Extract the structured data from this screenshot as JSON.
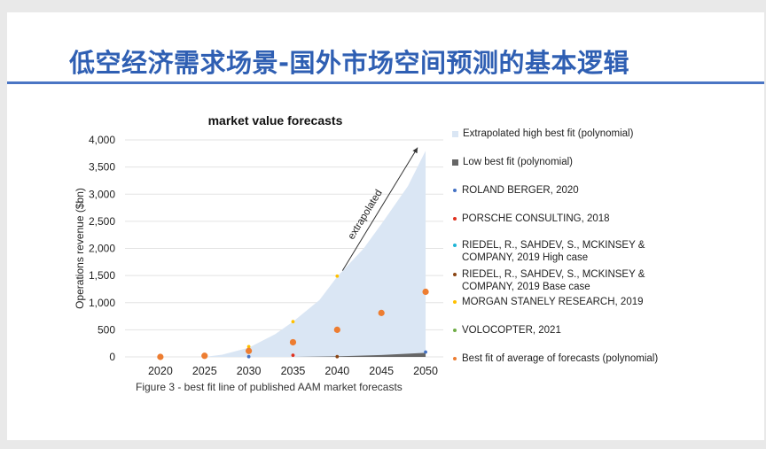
{
  "slide": {
    "title": "低空经济需求场景-国外市场空间预测的基本逻辑",
    "caption": "Figure 3 - best fit line of published AAM market forecasts"
  },
  "chart_data": {
    "type": "scatter",
    "title": "market value forecasts",
    "xlabel": "",
    "ylabel": "Operations revenue ($bn)",
    "xlim": [
      2016,
      2052
    ],
    "ylim": [
      0,
      4000
    ],
    "x_ticks": [
      "2020",
      "2025",
      "2030",
      "2035",
      "2040",
      "2045",
      "2050"
    ],
    "y_ticks": [
      "0",
      "500",
      "1,000",
      "1,500",
      "2,000",
      "2,500",
      "3,000",
      "3,500",
      "4,000"
    ],
    "grid": "horizontal",
    "legend_position": "right",
    "annotation": "extrapolated",
    "series": [
      {
        "name": "Extrapolated high best fit (polynomial)",
        "kind": "area",
        "color": "#dae6f4",
        "x": [
          2025,
          2027,
          2030,
          2033,
          2035,
          2038,
          2040,
          2043,
          2045,
          2048,
          2050
        ],
        "y": [
          0,
          40,
          170,
          420,
          650,
          1050,
          1480,
          2000,
          2450,
          3150,
          3800
        ]
      },
      {
        "name": "Low best fit (polynomial)",
        "kind": "area",
        "color": "#666666",
        "x": [
          2030,
          2035,
          2040,
          2045,
          2050
        ],
        "y": [
          0,
          0,
          10,
          35,
          75
        ]
      },
      {
        "name": "ROLAND BERGER, 2020",
        "kind": "points",
        "color": "#4472c4",
        "x": [
          2030,
          2050
        ],
        "y": [
          5,
          90
        ]
      },
      {
        "name": "PORSCHE CONSULTING, 2018",
        "kind": "points",
        "color": "#e0301e",
        "x": [
          2035
        ],
        "y": [
          30
        ]
      },
      {
        "name": "RIEDEL, R., SAHDEV, S., MCKINSEY & COMPANY, 2019 High case",
        "kind": "points",
        "color": "#1fb5d6",
        "x": [],
        "y": []
      },
      {
        "name": "RIEDEL, R., SAHDEV, S., MCKINSEY & COMPANY, 2019 Base case",
        "kind": "points",
        "color": "#8b4513",
        "x": [
          2040
        ],
        "y": [
          5
        ]
      },
      {
        "name": "MORGAN STANELY RESEARCH, 2019",
        "kind": "points",
        "color": "#ffc000",
        "x": [
          2030,
          2035,
          2040
        ],
        "y": [
          190,
          650,
          1490
        ]
      },
      {
        "name": "VOLOCOPTER, 2021",
        "kind": "points",
        "color": "#70ad47",
        "x": [],
        "y": []
      },
      {
        "name": "Best fit of average of forecasts (polynomial)",
        "kind": "points",
        "color": "#ed7d31",
        "x": [
          2020,
          2025,
          2030,
          2035,
          2040,
          2045,
          2050
        ],
        "y": [
          0,
          20,
          110,
          270,
          500,
          810,
          1200
        ]
      }
    ]
  }
}
